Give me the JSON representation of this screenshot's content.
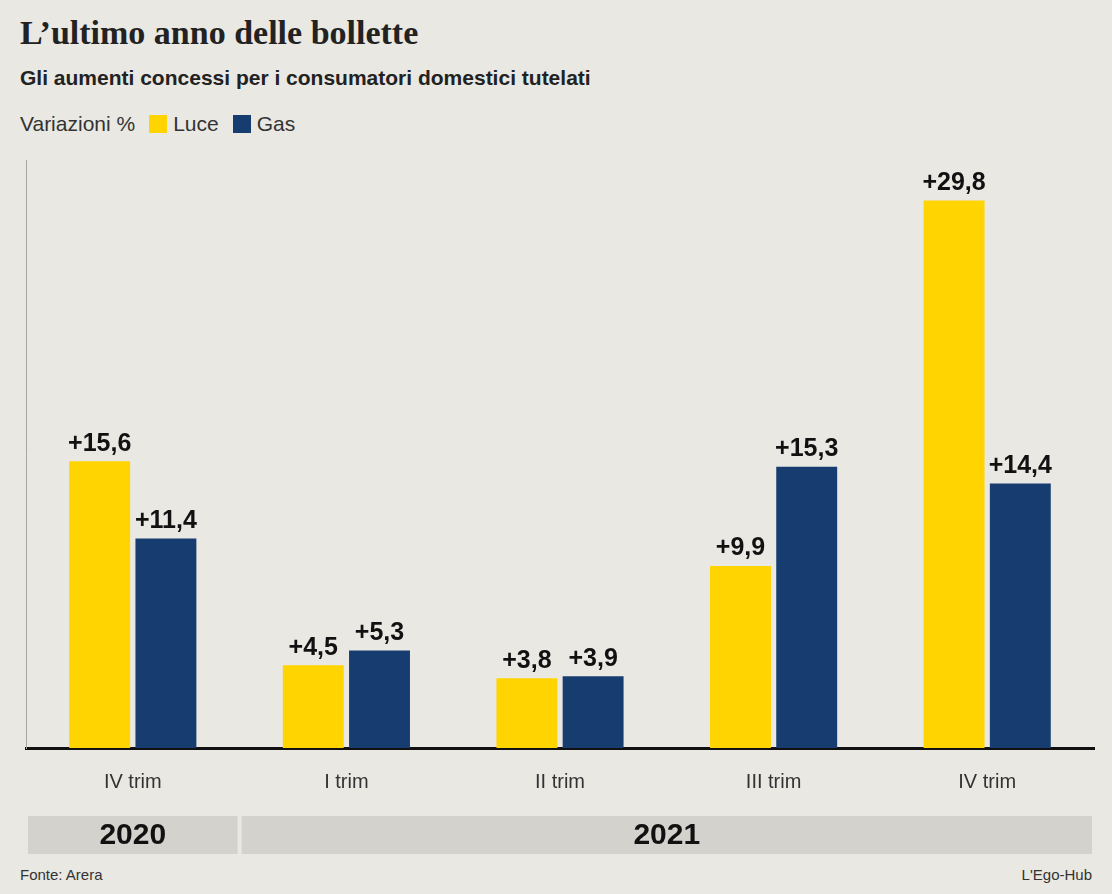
{
  "chart_data": {
    "type": "bar",
    "title": "L’ultimo anno delle bollette",
    "subtitle": "Gli aumenti concessi per i consumatori domestici tutelati",
    "legend_title": "Variazioni %",
    "legend": "top-left",
    "categories": [
      "IV trim",
      "I trim",
      "II trim",
      "III trim",
      "IV trim"
    ],
    "category_groups": [
      {
        "label": "2020",
        "count": 1
      },
      {
        "label": "2021",
        "count": 4
      }
    ],
    "series": [
      {
        "name": "Luce",
        "color": "#ffd400",
        "values": [
          15.6,
          4.5,
          3.8,
          9.9,
          29.8
        ],
        "value_labels": [
          "+15,6",
          "+4,5",
          "+3,8",
          "+9,9",
          "+29,8"
        ]
      },
      {
        "name": "Gas",
        "color": "#173c70",
        "values": [
          11.4,
          5.3,
          3.9,
          15.3,
          14.4
        ],
        "value_labels": [
          "+11,4",
          "+5,3",
          "+3,9",
          "+15,3",
          "+14,4"
        ]
      }
    ],
    "ylim": [
      0,
      32
    ],
    "grid": false,
    "data_labels": true,
    "tick_labels": "x",
    "source": "Fonte: Arera",
    "credit": "L'Ego-Hub"
  }
}
